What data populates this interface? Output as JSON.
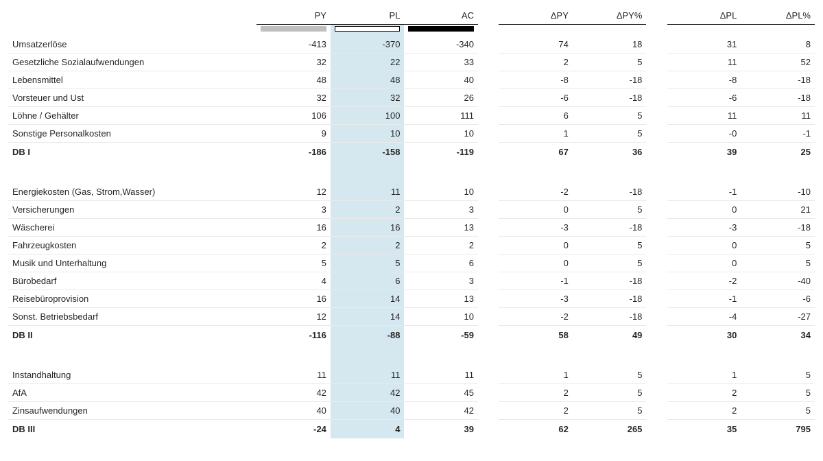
{
  "columns": {
    "py": "PY",
    "pl": "PL",
    "ac": "AC",
    "dpy": "ΔPY",
    "dpyp": "ΔPY%",
    "dpl": "ΔPL",
    "dplp": "ΔPL%"
  },
  "styling": {
    "font_family": "Verdana",
    "font_size_pt": 10,
    "header_underline_color": "#000000",
    "row_separator_color": "#e9e9e9",
    "total_border_color": "#000000",
    "pl_highlight_bg": "#d5e8ef",
    "marker_py_bg": "#bfbfbf",
    "marker_pl_bg": "#ffffff",
    "marker_pl_border": "#000000",
    "marker_ac_bg": "#000000",
    "background": "#ffffff",
    "text_color": "#262626"
  },
  "sections": [
    {
      "rows": [
        {
          "label": "Umsatzerlöse",
          "py": "-413",
          "pl": "-370",
          "ac": "-340",
          "dpy": "74",
          "dpyp": "18",
          "dpl": "31",
          "dplp": "8"
        },
        {
          "label": "Gesetzliche Sozialaufwendungen",
          "py": "32",
          "pl": "22",
          "ac": "33",
          "dpy": "2",
          "dpyp": "5",
          "dpl": "11",
          "dplp": "52"
        },
        {
          "label": "Lebensmittel",
          "py": "48",
          "pl": "48",
          "ac": "40",
          "dpy": "-8",
          "dpyp": "-18",
          "dpl": "-8",
          "dplp": "-18"
        },
        {
          "label": "Vorsteuer und Ust",
          "py": "32",
          "pl": "32",
          "ac": "26",
          "dpy": "-6",
          "dpyp": "-18",
          "dpl": "-6",
          "dplp": "-18"
        },
        {
          "label": "Löhne / Gehälter",
          "py": "106",
          "pl": "100",
          "ac": "111",
          "dpy": "6",
          "dpyp": "5",
          "dpl": "11",
          "dplp": "11"
        },
        {
          "label": "Sonstige Personalkosten",
          "py": "9",
          "pl": "10",
          "ac": "10",
          "dpy": "1",
          "dpyp": "5",
          "dpl": "-0",
          "dplp": "-1"
        }
      ],
      "total": {
        "label": "DB I",
        "py": "-186",
        "pl": "-158",
        "ac": "-119",
        "dpy": "67",
        "dpyp": "36",
        "dpl": "39",
        "dplp": "25"
      }
    },
    {
      "rows": [
        {
          "label": "Energiekosten (Gas, Strom,Wasser)",
          "py": "12",
          "pl": "11",
          "ac": "10",
          "dpy": "-2",
          "dpyp": "-18",
          "dpl": "-1",
          "dplp": "-10"
        },
        {
          "label": "Versicherungen",
          "py": "3",
          "pl": "2",
          "ac": "3",
          "dpy": "0",
          "dpyp": "5",
          "dpl": "0",
          "dplp": "21"
        },
        {
          "label": "Wäscherei",
          "py": "16",
          "pl": "16",
          "ac": "13",
          "dpy": "-3",
          "dpyp": "-18",
          "dpl": "-3",
          "dplp": "-18"
        },
        {
          "label": "Fahrzeugkosten",
          "py": "2",
          "pl": "2",
          "ac": "2",
          "dpy": "0",
          "dpyp": "5",
          "dpl": "0",
          "dplp": "5"
        },
        {
          "label": "Musik und Unterhaltung",
          "py": "5",
          "pl": "5",
          "ac": "6",
          "dpy": "0",
          "dpyp": "5",
          "dpl": "0",
          "dplp": "5"
        },
        {
          "label": "Bürobedarf",
          "py": "4",
          "pl": "6",
          "ac": "3",
          "dpy": "-1",
          "dpyp": "-18",
          "dpl": "-2",
          "dplp": "-40"
        },
        {
          "label": "Reisebüroprovision",
          "py": "16",
          "pl": "14",
          "ac": "13",
          "dpy": "-3",
          "dpyp": "-18",
          "dpl": "-1",
          "dplp": "-6"
        },
        {
          "label": "Sonst. Betriebsbedarf",
          "py": "12",
          "pl": "14",
          "ac": "10",
          "dpy": "-2",
          "dpyp": "-18",
          "dpl": "-4",
          "dplp": "-27"
        }
      ],
      "total": {
        "label": "DB II",
        "py": "-116",
        "pl": "-88",
        "ac": "-59",
        "dpy": "58",
        "dpyp": "49",
        "dpl": "30",
        "dplp": "34"
      }
    },
    {
      "rows": [
        {
          "label": "Instandhaltung",
          "py": "11",
          "pl": "11",
          "ac": "11",
          "dpy": "1",
          "dpyp": "5",
          "dpl": "1",
          "dplp": "5"
        },
        {
          "label": "AfA",
          "py": "42",
          "pl": "42",
          "ac": "45",
          "dpy": "2",
          "dpyp": "5",
          "dpl": "2",
          "dplp": "5"
        },
        {
          "label": "Zinsaufwendungen",
          "py": "40",
          "pl": "40",
          "ac": "42",
          "dpy": "2",
          "dpyp": "5",
          "dpl": "2",
          "dplp": "5"
        }
      ],
      "total": {
        "label": "DB III",
        "py": "-24",
        "pl": "4",
        "ac": "39",
        "dpy": "62",
        "dpyp": "265",
        "dpl": "35",
        "dplp": "795"
      }
    }
  ]
}
